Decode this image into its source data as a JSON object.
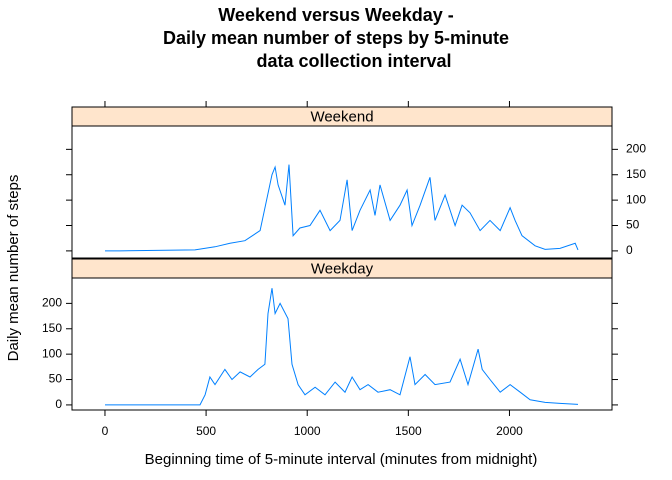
{
  "chart_data": {
    "type": "line",
    "title": [
      "Weekend versus Weekday -",
      "Daily mean number of steps by 5-minute",
      "data collection interval"
    ],
    "x_label": "Beginning time of 5-minute interval (minutes from midnight)",
    "y_label": "Daily mean number of steps",
    "xlim": [
      -163,
      2507
    ],
    "xticks": [
      0,
      500,
      1000,
      1500,
      2000
    ],
    "panels": [
      {
        "name": "Weekend",
        "color": "#0080ff",
        "ylim": [
          -14,
          246
        ],
        "yticks": [
          0,
          50,
          100,
          150,
          200
        ],
        "x": [
          0,
          74,
          445,
          544,
          618,
          692,
          767,
          826,
          841,
          856,
          890,
          910,
          930,
          964,
          1014,
          1063,
          1113,
          1162,
          1197,
          1222,
          1261,
          1311,
          1335,
          1360,
          1410,
          1459,
          1494,
          1518,
          1558,
          1607,
          1632,
          1682,
          1731,
          1766,
          1805,
          1855,
          1904,
          1954,
          2003,
          2028,
          2062,
          2127,
          2176,
          2250,
          2325,
          2339
        ],
        "values": [
          0,
          0,
          2,
          8,
          15,
          20,
          40,
          150,
          165,
          130,
          90,
          170,
          30,
          45,
          50,
          80,
          40,
          60,
          140,
          40,
          80,
          120,
          70,
          130,
          60,
          90,
          120,
          50,
          90,
          145,
          60,
          110,
          50,
          90,
          75,
          40,
          60,
          40,
          85,
          60,
          30,
          10,
          3,
          5,
          15,
          2
        ]
      },
      {
        "name": "Weekday",
        "color": "#0080ff",
        "ylim": [
          -10,
          250
        ],
        "yticks": [
          0,
          50,
          100,
          150,
          200
        ],
        "x": [
          0,
          470,
          495,
          519,
          544,
          593,
          628,
          668,
          717,
          757,
          791,
          806,
          826,
          841,
          866,
          905,
          925,
          955,
          989,
          1039,
          1088,
          1138,
          1187,
          1222,
          1261,
          1301,
          1350,
          1410,
          1459,
          1508,
          1533,
          1583,
          1632,
          1706,
          1756,
          1795,
          1845,
          1865,
          1904,
          1954,
          2003,
          2053,
          2102,
          2176,
          2250,
          2339
        ],
        "values": [
          0,
          0,
          20,
          55,
          40,
          70,
          50,
          65,
          55,
          70,
          80,
          180,
          230,
          180,
          200,
          170,
          80,
          40,
          20,
          35,
          20,
          45,
          25,
          55,
          30,
          40,
          25,
          30,
          20,
          95,
          40,
          60,
          40,
          45,
          90,
          40,
          110,
          70,
          50,
          25,
          40,
          25,
          10,
          5,
          3,
          1
        ]
      }
    ]
  }
}
